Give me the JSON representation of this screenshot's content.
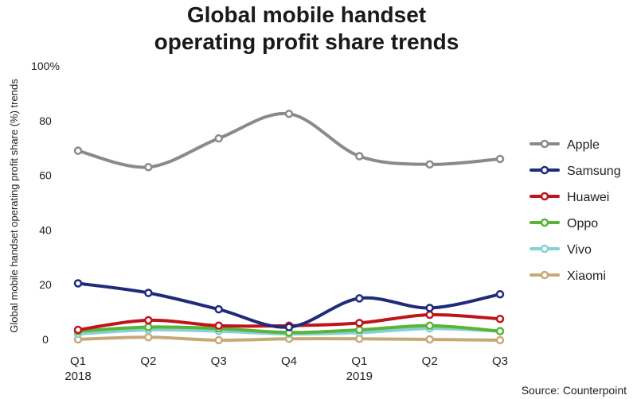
{
  "chart_data": {
    "type": "line",
    "title": [
      "Global mobile handset",
      "operating profit share trends"
    ],
    "ylabel": "Global mobile handset operating profit share (%) trends",
    "xlabel": "",
    "ylim": [
      0,
      100
    ],
    "yticks": [
      "0",
      "20",
      "40",
      "60",
      "80",
      "100%"
    ],
    "ytick_values": [
      0,
      20,
      40,
      60,
      80,
      100
    ],
    "categories": [
      {
        "line1": "Q1",
        "line2": "2018"
      },
      {
        "line1": "Q2",
        "line2": ""
      },
      {
        "line1": "Q3",
        "line2": ""
      },
      {
        "line1": "Q4",
        "line2": ""
      },
      {
        "line1": "Q1",
        "line2": "2019"
      },
      {
        "line1": "Q2",
        "line2": ""
      },
      {
        "line1": "Q3",
        "line2": ""
      }
    ],
    "series": [
      {
        "name": "Apple",
        "color": "#8a8a8a",
        "values": [
          69,
          63,
          73.5,
          82.5,
          67,
          64,
          66
        ]
      },
      {
        "name": "Samsung",
        "color": "#1f2a7a",
        "values": [
          20.5,
          17,
          11,
          4.5,
          15,
          11.5,
          16.5
        ]
      },
      {
        "name": "Huawei",
        "color": "#c0141c",
        "values": [
          3.5,
          7,
          5,
          5,
          6,
          9,
          7.5
        ]
      },
      {
        "name": "Oppo",
        "color": "#5ab435",
        "values": [
          3,
          4.5,
          4,
          2.5,
          3.5,
          5,
          3
        ]
      },
      {
        "name": "Vivo",
        "color": "#86cfd6",
        "values": [
          2,
          3.5,
          3,
          2,
          2.5,
          4,
          3
        ]
      },
      {
        "name": "Xiaomi",
        "color": "#c9a878",
        "values": [
          0,
          0.8,
          -0.3,
          0.2,
          0.2,
          0,
          -0.3
        ]
      }
    ],
    "legend_position": "right",
    "grid": false,
    "source": "Source: Counterpoint"
  }
}
